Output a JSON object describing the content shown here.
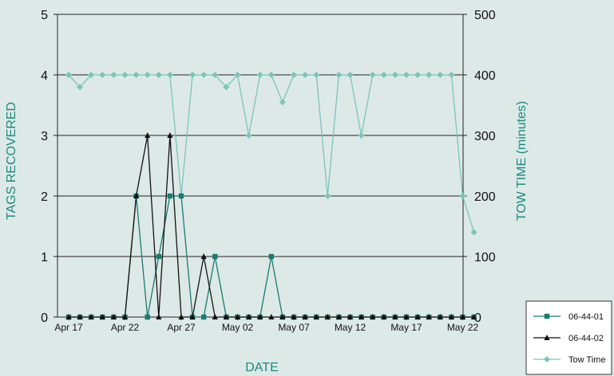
{
  "chart_data": {
    "type": "line",
    "xlabel": "DATE",
    "ylabel": "TAGS RECOVERED",
    "y2label": "TOW TIME (minutes)",
    "x_start_label": "Apr 17",
    "x_tick_labels": [
      "Apr 17",
      "Apr 22",
      "Apr 27",
      "May 02",
      "May 07",
      "May 12",
      "May 17",
      "May 22"
    ],
    "ylim": [
      0,
      5
    ],
    "y_ticks": [
      "0",
      "1",
      "2",
      "3",
      "4",
      "5"
    ],
    "y2lim": [
      0,
      500
    ],
    "y2_ticks": [
      "0",
      "100",
      "200",
      "300",
      "400",
      "500"
    ],
    "grid": "horizontal",
    "legend_position": "bottom-right",
    "series": [
      {
        "name": "06-44-01",
        "axis": "left",
        "color": "#1a7a70",
        "marker": "square",
        "values": [
          0,
          0,
          0,
          0,
          0,
          0,
          2,
          0,
          1,
          2,
          2,
          0,
          0,
          1,
          0,
          0,
          0,
          0,
          1,
          0,
          0,
          0,
          0,
          0,
          0,
          0,
          0,
          0,
          0,
          0,
          0,
          0,
          0,
          0,
          0,
          0,
          0
        ]
      },
      {
        "name": "06-44-02",
        "axis": "left",
        "color": "#111111",
        "marker": "triangle",
        "values": [
          0,
          0,
          0,
          0,
          0,
          0,
          2,
          3,
          0,
          3,
          0,
          0,
          1,
          0,
          0,
          0,
          0,
          0,
          0,
          0,
          0,
          0,
          0,
          0,
          0,
          0,
          0,
          0,
          0,
          0,
          0,
          0,
          0,
          0,
          0,
          0,
          0
        ]
      },
      {
        "name": "Tow Time",
        "axis": "right",
        "color": "#7cc4b8",
        "marker": "diamond",
        "values": [
          400,
          380,
          400,
          400,
          400,
          400,
          400,
          400,
          400,
          400,
          200,
          400,
          400,
          400,
          380,
          400,
          300,
          400,
          400,
          355,
          400,
          400,
          400,
          200,
          400,
          400,
          300,
          400,
          400,
          400,
          400,
          400,
          400,
          400,
          400,
          200,
          140
        ]
      }
    ]
  }
}
